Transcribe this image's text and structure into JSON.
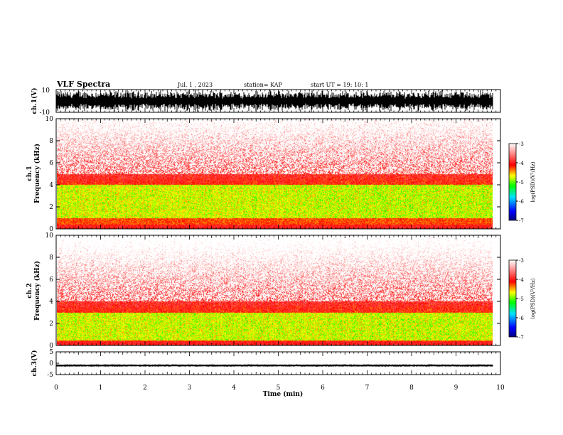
{
  "header": {
    "title": "VLF Spectra",
    "date": "Jul.  1  , 2023",
    "station": "station= KAP",
    "start_ut": "start  UT  =   19: 10: 1"
  },
  "chart_data": [
    {
      "type": "line",
      "name": "ch1-waveform",
      "ylabel": "ch.1(V)",
      "ylim": [
        -10,
        10
      ],
      "ytick_labels": [
        "10",
        "-10"
      ],
      "xlim": [
        0,
        10
      ],
      "description_values": {
        "amplitude_range_V": [
          -10,
          10
        ]
      }
    },
    {
      "type": "heatmap",
      "name": "ch1-spectrogram",
      "ylabel": "ch.1\nFrequency  (kHz)",
      "ylabel_lines": [
        "ch.1",
        "Frequency  (kHz)"
      ],
      "ylim": [
        0,
        10
      ],
      "yticks": [
        0,
        2,
        4,
        6,
        8,
        10
      ],
      "ytick_labels": [
        "0",
        "2",
        "4",
        "6",
        "8",
        "10"
      ],
      "xlim": [
        0,
        10
      ],
      "intense_band_khz": [
        1,
        4
      ],
      "colorbar": {
        "label": "log(PSD)(V²/Hz)",
        "range": [
          -7,
          -3
        ],
        "tick_values": [
          -3,
          -4,
          -5,
          -6,
          -7
        ],
        "tick_labels": [
          "-3",
          "-4",
          "-5",
          "-6",
          "-7"
        ]
      }
    },
    {
      "type": "heatmap",
      "name": "ch2-spectrogram",
      "ylabel": "ch.2\nFrequency  (kHz)",
      "ylabel_lines": [
        "ch.2",
        "Frequency  (kHz)"
      ],
      "ylim": [
        0,
        10
      ],
      "yticks": [
        0,
        2,
        4,
        6,
        8,
        10
      ],
      "ytick_labels": [
        "0",
        "2",
        "4",
        "6",
        "8",
        "10"
      ],
      "xlim": [
        0,
        10
      ],
      "intense_band_khz": [
        0.5,
        3
      ],
      "colorbar": {
        "label": "log(PSD)(V²/Hz)",
        "range": [
          -7,
          -3
        ],
        "tick_values": [
          -3,
          -4,
          -5,
          -6,
          -7
        ],
        "tick_labels": [
          "-3",
          "-4",
          "-5",
          "-6",
          "-7"
        ]
      }
    },
    {
      "type": "line",
      "name": "ch3-waveform",
      "ylabel": "ch.3(V)",
      "ylim": [
        -5,
        5
      ],
      "yticks": [
        5,
        0,
        -5
      ],
      "ytick_labels": [
        "5",
        "0",
        "-5"
      ],
      "signal_level_V": -1,
      "signal_amplitude_V": 0.5,
      "xlim": [
        0,
        10
      ],
      "xlabel": "Time  (min)",
      "xticks": [
        0,
        1,
        2,
        3,
        4,
        5,
        6,
        7,
        8,
        9,
        10
      ],
      "xtick_labels": [
        "0",
        "1",
        "2",
        "3",
        "4",
        "5",
        "6",
        "7",
        "8",
        "9",
        "10"
      ]
    }
  ]
}
